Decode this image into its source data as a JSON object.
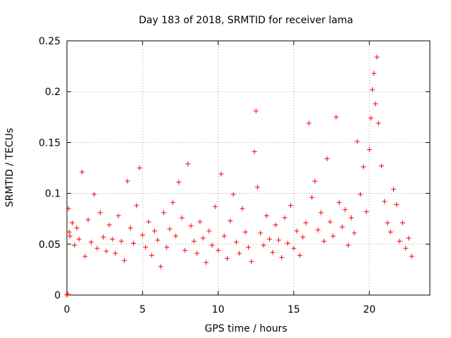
{
  "chart_data": {
    "type": "scatter",
    "title": "Day 183 of 2018, SRMTID for receiver lama",
    "xlabel": "GPS time / hours",
    "ylabel": "SRMTID / TECUs",
    "xlim": [
      0,
      24
    ],
    "ylim": [
      0,
      0.25
    ],
    "xticks": [
      0,
      5,
      10,
      15,
      20
    ],
    "xtick_labels": [
      "0",
      "5",
      "10",
      "15",
      "20"
    ],
    "yticks": [
      0,
      0.05,
      0.1,
      0.15,
      0.2,
      0.25
    ],
    "ytick_labels": [
      "0",
      "0.05",
      "0.1",
      "0.15",
      "0.2",
      "0.25"
    ],
    "grid": true,
    "marker": "+",
    "color": "#ff0000",
    "series": [
      {
        "name": "SRMTID",
        "x": [
          0.0,
          0.05,
          0.1,
          0.15,
          0.2,
          0.35,
          0.5,
          0.65,
          0.8,
          1.0,
          1.2,
          1.4,
          1.6,
          1.8,
          2.0,
          2.2,
          2.4,
          2.6,
          2.8,
          3.0,
          3.2,
          3.4,
          3.6,
          3.8,
          4.0,
          4.2,
          4.4,
          4.6,
          4.8,
          5.0,
          5.2,
          5.4,
          5.6,
          5.8,
          6.0,
          6.2,
          6.4,
          6.6,
          6.8,
          7.0,
          7.2,
          7.4,
          7.6,
          7.8,
          8.0,
          8.2,
          8.4,
          8.6,
          8.8,
          9.0,
          9.2,
          9.4,
          9.6,
          9.8,
          10.0,
          10.2,
          10.4,
          10.6,
          10.8,
          11.0,
          11.2,
          11.4,
          11.6,
          11.8,
          12.0,
          12.2,
          12.4,
          12.5,
          12.6,
          12.8,
          13.0,
          13.2,
          13.4,
          13.6,
          13.8,
          14.0,
          14.2,
          14.4,
          14.6,
          14.8,
          15.0,
          15.2,
          15.4,
          15.6,
          15.8,
          16.0,
          16.2,
          16.4,
          16.6,
          16.8,
          17.0,
          17.2,
          17.4,
          17.6,
          17.8,
          18.0,
          18.2,
          18.4,
          18.6,
          18.8,
          19.0,
          19.2,
          19.4,
          19.6,
          19.8,
          20.0,
          20.1,
          20.2,
          20.3,
          20.4,
          20.5,
          20.6,
          20.8,
          21.0,
          21.2,
          21.4,
          21.6,
          21.8,
          22.0,
          22.2,
          22.4,
          22.6,
          22.8
        ],
        "y": [
          0.0,
          0.001,
          0.085,
          0.062,
          0.058,
          0.071,
          0.049,
          0.066,
          0.055,
          0.121,
          0.038,
          0.074,
          0.052,
          0.099,
          0.046,
          0.081,
          0.057,
          0.043,
          0.069,
          0.055,
          0.041,
          0.078,
          0.053,
          0.034,
          0.112,
          0.066,
          0.051,
          0.088,
          0.125,
          0.059,
          0.047,
          0.072,
          0.039,
          0.063,
          0.054,
          0.028,
          0.081,
          0.047,
          0.065,
          0.091,
          0.058,
          0.111,
          0.076,
          0.044,
          0.129,
          0.068,
          0.053,
          0.041,
          0.072,
          0.056,
          0.032,
          0.063,
          0.049,
          0.087,
          0.044,
          0.119,
          0.058,
          0.036,
          0.073,
          0.099,
          0.052,
          0.041,
          0.085,
          0.062,
          0.047,
          0.033,
          0.141,
          0.181,
          0.106,
          0.061,
          0.049,
          0.078,
          0.055,
          0.042,
          0.069,
          0.054,
          0.037,
          0.076,
          0.051,
          0.088,
          0.046,
          0.063,
          0.039,
          0.057,
          0.071,
          0.169,
          0.096,
          0.112,
          0.064,
          0.081,
          0.053,
          0.134,
          0.072,
          0.058,
          0.175,
          0.091,
          0.067,
          0.084,
          0.049,
          0.076,
          0.061,
          0.151,
          0.099,
          0.126,
          0.082,
          0.143,
          0.174,
          0.202,
          0.218,
          0.188,
          0.234,
          0.169,
          0.127,
          0.092,
          0.071,
          0.062,
          0.104,
          0.089,
          0.053,
          0.071,
          0.046,
          0.056,
          0.038
        ]
      }
    ]
  }
}
